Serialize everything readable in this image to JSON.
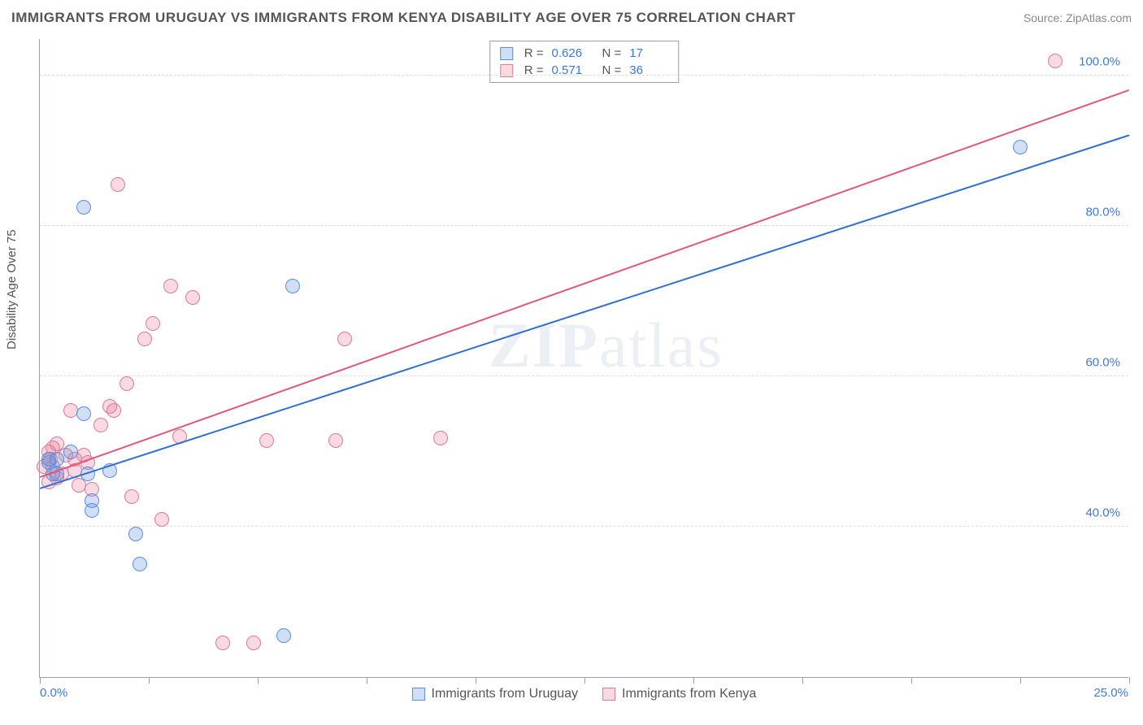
{
  "header": {
    "title": "IMMIGRANTS FROM URUGUAY VS IMMIGRANTS FROM KENYA DISABILITY AGE OVER 75 CORRELATION CHART",
    "source": "Source: ZipAtlas.com"
  },
  "watermark": {
    "left": "ZIP",
    "right": "atlas"
  },
  "chart": {
    "type": "scatter",
    "ylabel": "Disability Age Over 75",
    "xlim": [
      0,
      25
    ],
    "ylim": [
      20,
      105
    ],
    "x_axis": {
      "min_label": "0.0%",
      "max_label": "25.0%",
      "tick_positions_pct": [
        0,
        10,
        20,
        30,
        40,
        50,
        60,
        70,
        80,
        90,
        100
      ]
    },
    "y_gridlines": [
      {
        "value": 40,
        "label": "40.0%"
      },
      {
        "value": 60,
        "label": "60.0%"
      },
      {
        "value": 80,
        "label": "80.0%"
      },
      {
        "value": 100,
        "label": "100.0%"
      }
    ],
    "colors": {
      "series_a_fill": "rgba(99,148,222,0.30)",
      "series_a_stroke": "#5a8edc",
      "series_a_line": "#2f6fd0",
      "series_b_fill": "rgba(235,120,150,0.28)",
      "series_b_stroke": "#e07a95",
      "series_b_line": "#e0577e",
      "grid": "#dcdcdc",
      "axis": "#9aa0a6",
      "tick_text": "#3b78e7",
      "title_text": "#555555"
    },
    "marker_radius": 9,
    "legend_stats": {
      "rows": [
        {
          "series": "a",
          "r_label": "R =",
          "r": "0.626",
          "n_label": "N =",
          "n": "17"
        },
        {
          "series": "b",
          "r_label": "R =",
          "r": "0.571",
          "n_label": "N =",
          "n": "36"
        }
      ]
    },
    "bottom_legend": {
      "a": "Immigrants from Uruguay",
      "b": "Immigrants from Kenya"
    },
    "trend_lines": {
      "a": {
        "x1": 0.0,
        "y1": 45.0,
        "x2": 25.0,
        "y2": 92.0
      },
      "b": {
        "x1": 0.0,
        "y1": 46.5,
        "x2": 25.0,
        "y2": 98.0
      }
    },
    "series": {
      "a": [
        {
          "x": 0.2,
          "y": 48.5
        },
        {
          "x": 0.2,
          "y": 49.0
        },
        {
          "x": 0.3,
          "y": 47.0
        },
        {
          "x": 0.4,
          "y": 49.0
        },
        {
          "x": 0.4,
          "y": 47.0
        },
        {
          "x": 0.7,
          "y": 50.0
        },
        {
          "x": 1.0,
          "y": 55.0
        },
        {
          "x": 1.0,
          "y": 82.5
        },
        {
          "x": 1.1,
          "y": 47.0
        },
        {
          "x": 1.2,
          "y": 43.5
        },
        {
          "x": 1.2,
          "y": 42.2
        },
        {
          "x": 1.6,
          "y": 47.5
        },
        {
          "x": 2.2,
          "y": 39.0
        },
        {
          "x": 2.3,
          "y": 35.0
        },
        {
          "x": 5.6,
          "y": 25.5
        },
        {
          "x": 5.8,
          "y": 72.0
        },
        {
          "x": 22.5,
          "y": 90.5
        }
      ],
      "b": [
        {
          "x": 0.1,
          "y": 48.0
        },
        {
          "x": 0.2,
          "y": 50.0
        },
        {
          "x": 0.2,
          "y": 46.0
        },
        {
          "x": 0.25,
          "y": 49.0
        },
        {
          "x": 0.3,
          "y": 48.0
        },
        {
          "x": 0.3,
          "y": 50.5
        },
        {
          "x": 0.4,
          "y": 46.5
        },
        {
          "x": 0.4,
          "y": 51.0
        },
        {
          "x": 0.5,
          "y": 47.0
        },
        {
          "x": 0.6,
          "y": 49.5
        },
        {
          "x": 0.7,
          "y": 55.5
        },
        {
          "x": 0.8,
          "y": 47.5
        },
        {
          "x": 0.8,
          "y": 49.0
        },
        {
          "x": 0.9,
          "y": 45.5
        },
        {
          "x": 1.0,
          "y": 49.5
        },
        {
          "x": 1.2,
          "y": 45.0
        },
        {
          "x": 1.4,
          "y": 53.5
        },
        {
          "x": 1.6,
          "y": 56.0
        },
        {
          "x": 1.7,
          "y": 55.5
        },
        {
          "x": 1.8,
          "y": 85.5
        },
        {
          "x": 2.0,
          "y": 59.0
        },
        {
          "x": 2.1,
          "y": 44.0
        },
        {
          "x": 2.4,
          "y": 65.0
        },
        {
          "x": 2.6,
          "y": 67.0
        },
        {
          "x": 2.8,
          "y": 41.0
        },
        {
          "x": 3.0,
          "y": 72.0
        },
        {
          "x": 3.2,
          "y": 52.0
        },
        {
          "x": 3.5,
          "y": 70.5
        },
        {
          "x": 4.2,
          "y": 24.5
        },
        {
          "x": 4.9,
          "y": 24.5
        },
        {
          "x": 5.2,
          "y": 51.5
        },
        {
          "x": 6.8,
          "y": 51.5
        },
        {
          "x": 7.0,
          "y": 65.0
        },
        {
          "x": 9.2,
          "y": 51.8
        },
        {
          "x": 23.3,
          "y": 102.0
        },
        {
          "x": 1.1,
          "y": 48.5
        }
      ]
    }
  }
}
